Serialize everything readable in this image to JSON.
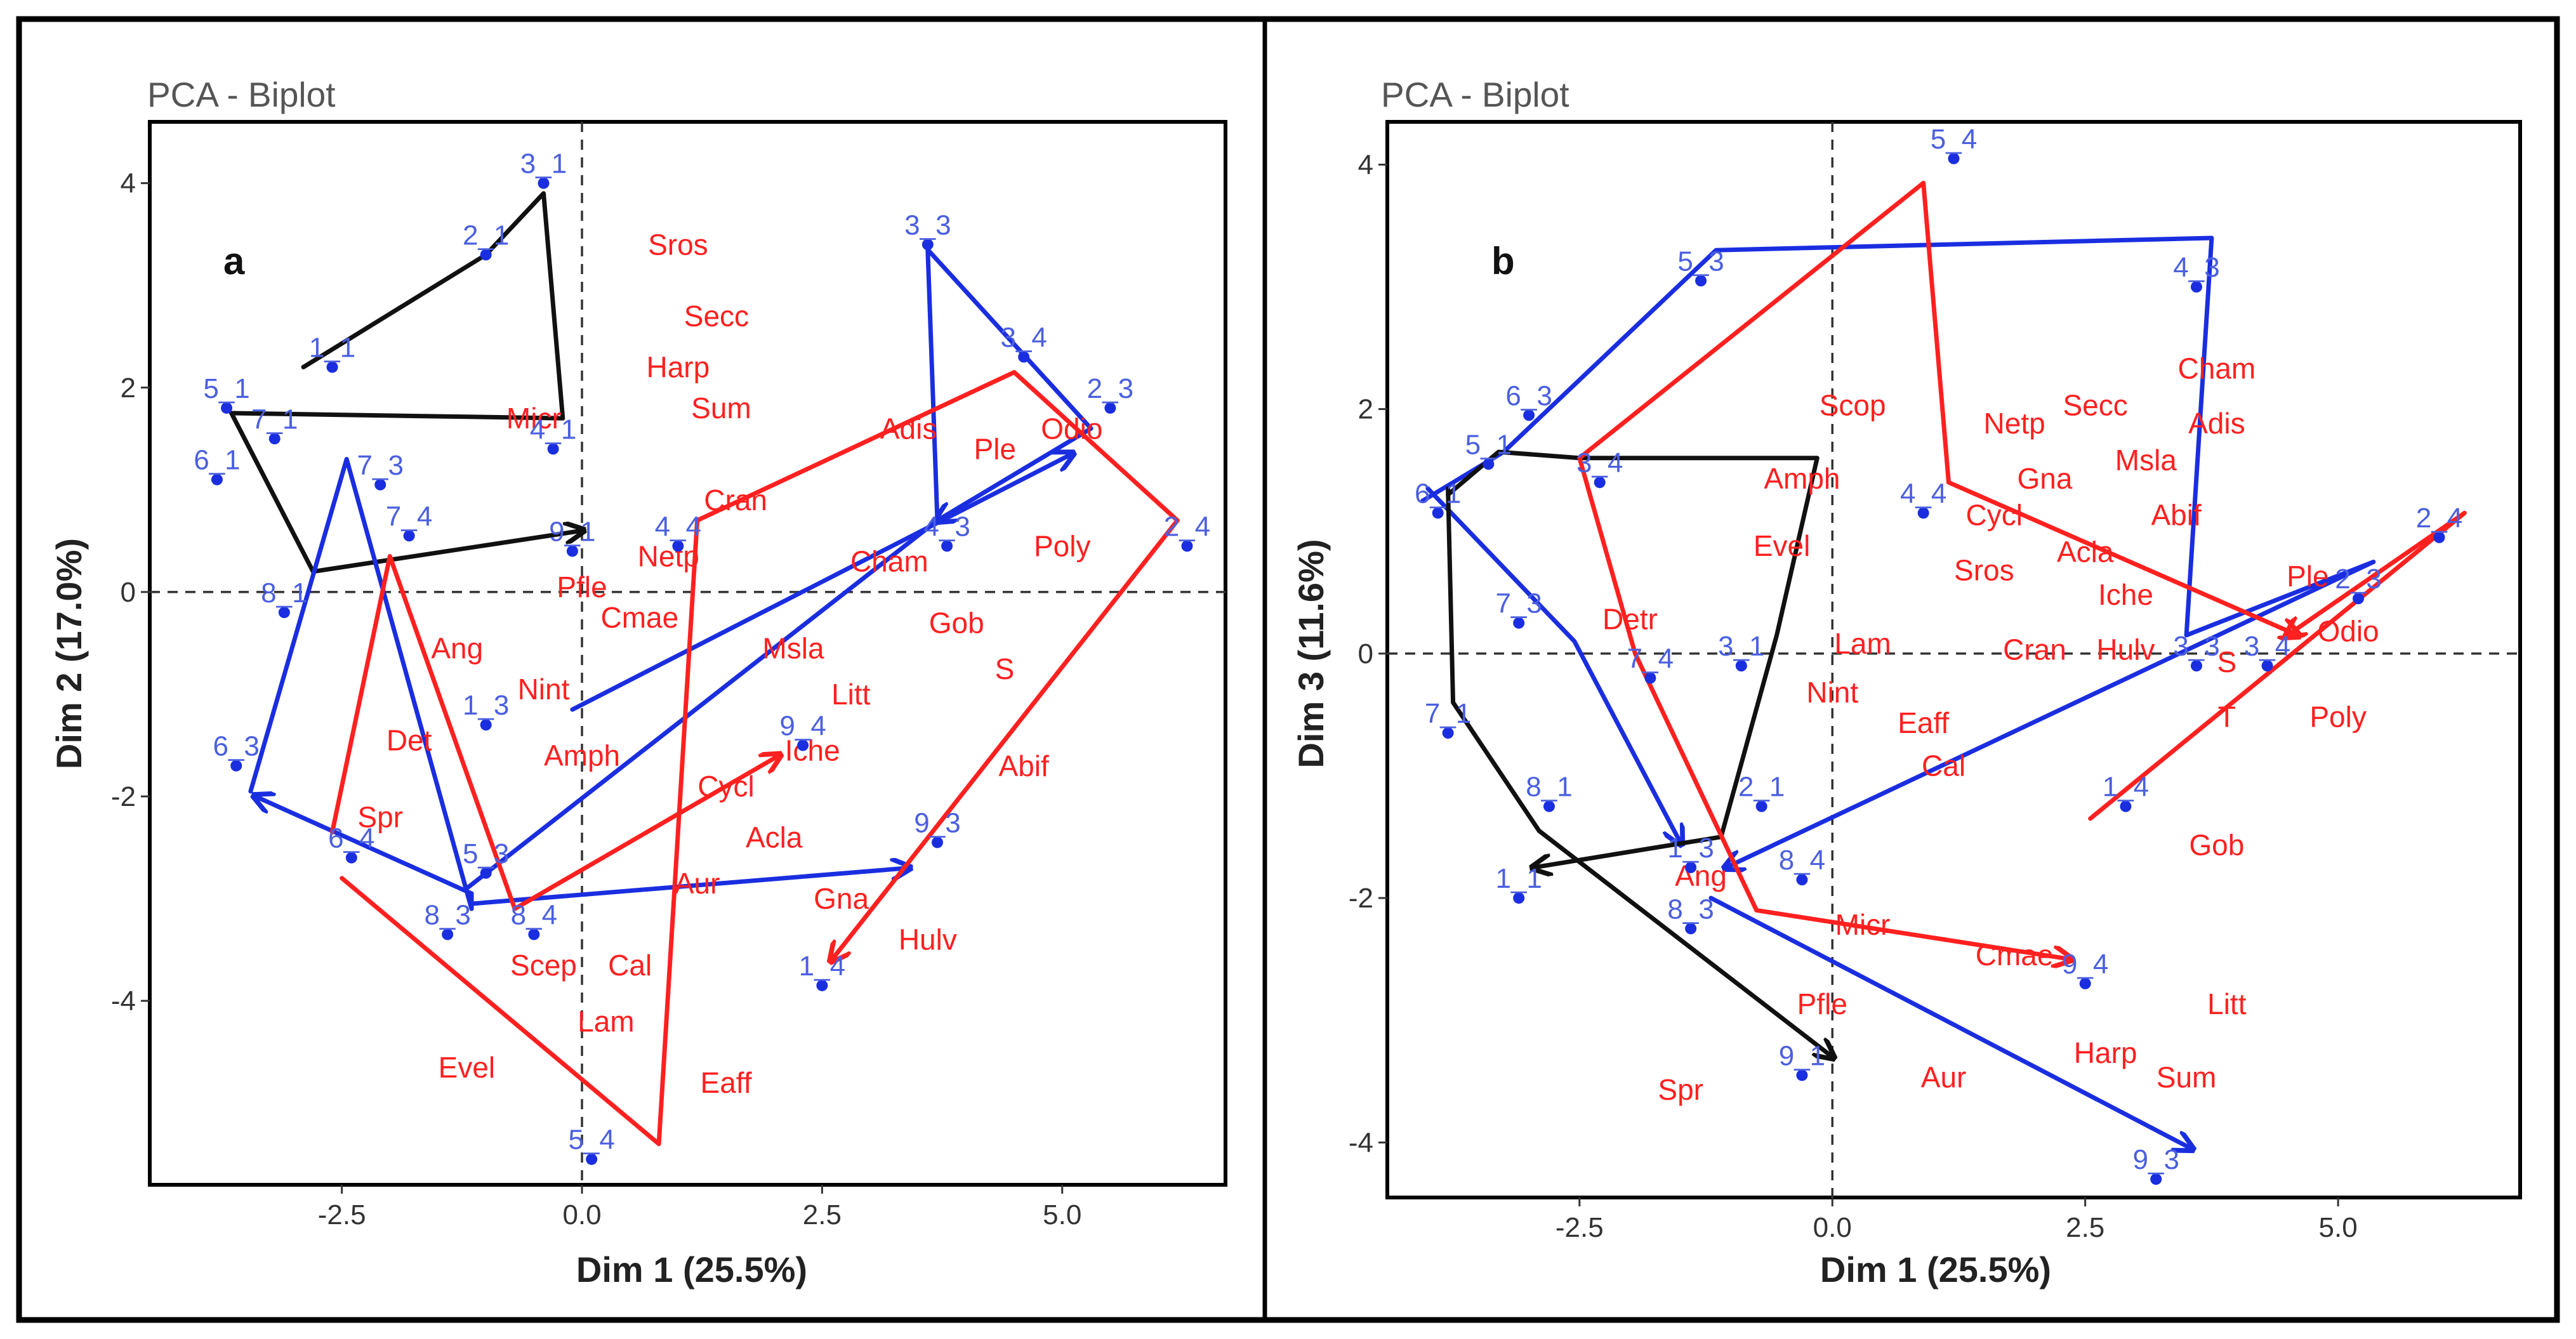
{
  "chart_data": [
    {
      "type": "scatter",
      "panel_label": "a",
      "title": "PCA - Biplot",
      "xlabel": "Dim 1 (25.5%)",
      "ylabel": "Dim 2 (17.0%)",
      "xlim": [
        -4.5,
        6.7
      ],
      "ylim": [
        -5.8,
        4.6
      ],
      "xticks": [
        -2.5,
        0.0,
        2.5,
        5.0
      ],
      "xtick_labels": [
        "-2.5",
        "0.0",
        "2.5",
        "5.0"
      ],
      "yticks": [
        -4,
        -2,
        0,
        2,
        4
      ],
      "ytick_labels": [
        "-4",
        "-2",
        "0",
        "2",
        "4"
      ],
      "species": [
        {
          "label": "Sros",
          "x": 1.0,
          "y": 3.3
        },
        {
          "label": "Secc",
          "x": 1.4,
          "y": 2.6
        },
        {
          "label": "Harp",
          "x": 1.0,
          "y": 2.1
        },
        {
          "label": "Sum",
          "x": 1.45,
          "y": 1.7
        },
        {
          "label": "Micr",
          "x": -0.5,
          "y": 1.6
        },
        {
          "label": "Adis",
          "x": 3.4,
          "y": 1.5
        },
        {
          "label": "Ple",
          "x": 4.3,
          "y": 1.3
        },
        {
          "label": "Odio",
          "x": 5.1,
          "y": 1.5
        },
        {
          "label": "Cran",
          "x": 1.6,
          "y": 0.8
        },
        {
          "label": "Poly",
          "x": 5.0,
          "y": 0.35
        },
        {
          "label": "Netp",
          "x": 0.9,
          "y": 0.25
        },
        {
          "label": "Cham",
          "x": 3.2,
          "y": 0.2
        },
        {
          "label": "Pfle",
          "x": 0.0,
          "y": -0.05
        },
        {
          "label": "Cmae",
          "x": 0.6,
          "y": -0.35
        },
        {
          "label": "Gob",
          "x": 3.9,
          "y": -0.4
        },
        {
          "label": "Ang",
          "x": -1.3,
          "y": -0.65
        },
        {
          "label": "Msla",
          "x": 2.2,
          "y": -0.65
        },
        {
          "label": "S",
          "x": 4.4,
          "y": -0.85
        },
        {
          "label": "Nint",
          "x": -0.4,
          "y": -1.05
        },
        {
          "label": "Litt",
          "x": 2.8,
          "y": -1.1
        },
        {
          "label": "Det",
          "x": -1.8,
          "y": -1.55
        },
        {
          "label": "Amph",
          "x": 0.0,
          "y": -1.7
        },
        {
          "label": "Iche",
          "x": 2.4,
          "y": -1.65
        },
        {
          "label": "Abif",
          "x": 4.6,
          "y": -1.8
        },
        {
          "label": "Cycl",
          "x": 1.5,
          "y": -2.0
        },
        {
          "label": "Spr",
          "x": -2.1,
          "y": -2.3
        },
        {
          "label": "Acla",
          "x": 2.0,
          "y": -2.5
        },
        {
          "label": "Aur",
          "x": 1.2,
          "y": -2.95
        },
        {
          "label": "Gna",
          "x": 2.7,
          "y": -3.1
        },
        {
          "label": "Hulv",
          "x": 3.6,
          "y": -3.5
        },
        {
          "label": "Scep",
          "x": -0.4,
          "y": -3.75
        },
        {
          "label": "Cal",
          "x": 0.5,
          "y": -3.75
        },
        {
          "label": "Lam",
          "x": 0.25,
          "y": -4.3
        },
        {
          "label": "Evel",
          "x": -1.2,
          "y": -4.75
        },
        {
          "label": "Eaff",
          "x": 1.5,
          "y": -4.9
        }
      ],
      "stations": [
        {
          "label": "3_1",
          "x": -0.4,
          "y": 4.0
        },
        {
          "label": "2_1",
          "x": -1.0,
          "y": 3.3
        },
        {
          "label": "1_1",
          "x": -2.6,
          "y": 2.2
        },
        {
          "label": "5_1",
          "x": -3.7,
          "y": 1.8
        },
        {
          "label": "7_1",
          "x": -3.2,
          "y": 1.5
        },
        {
          "label": "6_1",
          "x": -3.8,
          "y": 1.1
        },
        {
          "label": "4_1",
          "x": -0.3,
          "y": 1.4
        },
        {
          "label": "9_1",
          "x": -0.1,
          "y": 0.4
        },
        {
          "label": "8_1",
          "x": -3.1,
          "y": -0.2
        },
        {
          "label": "3_3",
          "x": 3.6,
          "y": 3.4
        },
        {
          "label": "3_4",
          "x": 4.6,
          "y": 2.3
        },
        {
          "label": "2_3",
          "x": 5.5,
          "y": 1.8
        },
        {
          "label": "7_3",
          "x": -2.1,
          "y": 1.05
        },
        {
          "label": "7_4",
          "x": -1.8,
          "y": 0.55
        },
        {
          "label": "4_4",
          "x": 1.0,
          "y": 0.45
        },
        {
          "label": "4_3",
          "x": 3.8,
          "y": 0.45
        },
        {
          "label": "2_4",
          "x": 6.3,
          "y": 0.45
        },
        {
          "label": "1_3",
          "x": -1.0,
          "y": -1.3
        },
        {
          "label": "9_4",
          "x": 2.3,
          "y": -1.5
        },
        {
          "label": "6_3",
          "x": -3.6,
          "y": -1.7
        },
        {
          "label": "6_4",
          "x": -2.4,
          "y": -2.6
        },
        {
          "label": "5_3",
          "x": -1.0,
          "y": -2.75
        },
        {
          "label": "9_3",
          "x": 3.7,
          "y": -2.45
        },
        {
          "label": "8_3",
          "x": -1.4,
          "y": -3.35
        },
        {
          "label": "8_4",
          "x": -0.5,
          "y": -3.35
        },
        {
          "label": "1_4",
          "x": 2.5,
          "y": -3.85
        },
        {
          "label": "5_4",
          "x": 0.1,
          "y": -5.55
        }
      ],
      "trajectories": [
        {
          "color": "#111111",
          "points": [
            [
              -2.9,
              2.2
            ],
            [
              -1.0,
              3.3
            ],
            [
              -0.4,
              3.9
            ],
            [
              -0.2,
              1.7
            ],
            [
              -3.65,
              1.75
            ],
            [
              -2.8,
              0.2
            ],
            [
              0.0,
              0.6
            ]
          ]
        },
        {
          "color": "#1a2ee0",
          "points": [
            [
              -3.45,
              -1.95
            ],
            [
              -2.45,
              1.3
            ],
            [
              -1.15,
              -3.1
            ],
            [
              -1.15,
              -2.95
            ],
            [
              -3.4,
              -2.0
            ]
          ]
        },
        {
          "color": "#1a2ee0",
          "points": [
            [
              -1.2,
              -2.9
            ],
            [
              3.7,
              0.7
            ],
            [
              3.6,
              3.35
            ],
            [
              5.3,
              1.6
            ],
            [
              3.7,
              0.7
            ]
          ]
        },
        {
          "color": "#1a2ee0",
          "points": [
            [
              -0.1,
              -1.15
            ],
            [
              5.1,
              1.35
            ]
          ]
        },
        {
          "color": "#1a2ee0",
          "points": [
            [
              -1.15,
              -3.05
            ],
            [
              3.4,
              -2.7
            ]
          ]
        },
        {
          "color": "#ff2020",
          "points": [
            [
              -2.6,
              -2.35
            ],
            [
              -2.0,
              0.35
            ],
            [
              -0.7,
              -3.1
            ],
            [
              -0.7,
              -3.1
            ],
            [
              2.05,
              -1.6
            ]
          ]
        },
        {
          "color": "#ff2020",
          "points": [
            [
              -2.5,
              -2.8
            ],
            [
              0.8,
              -5.4
            ],
            [
              1.2,
              0.7
            ],
            [
              4.5,
              2.15
            ],
            [
              6.2,
              0.7
            ],
            [
              2.6,
              -3.6
            ]
          ]
        }
      ]
    },
    {
      "type": "scatter",
      "panel_label": "b",
      "title": "PCA - Biplot",
      "xlabel": "Dim 1 (25.5%)",
      "ylabel": "Dim 3 (11.6%)",
      "xlim": [
        -4.4,
        6.8
      ],
      "ylim": [
        -4.45,
        4.35
      ],
      "xticks": [
        -2.5,
        0.0,
        2.5,
        5.0
      ],
      "xtick_labels": [
        "-2.5",
        "0.0",
        "2.5",
        "5.0"
      ],
      "yticks": [
        -4,
        -2,
        0,
        2,
        4
      ],
      "ytick_labels": [
        "-4",
        "-2",
        "0",
        "2",
        "4"
      ],
      "species": [
        {
          "label": "Cham",
          "x": 3.8,
          "y": 2.25
        },
        {
          "label": "Secc",
          "x": 2.6,
          "y": 1.95
        },
        {
          "label": "Scop",
          "x": 0.2,
          "y": 1.95
        },
        {
          "label": "Adis",
          "x": 3.8,
          "y": 1.8
        },
        {
          "label": "Netp",
          "x": 1.8,
          "y": 1.8
        },
        {
          "label": "Msla",
          "x": 3.1,
          "y": 1.5
        },
        {
          "label": "Gna",
          "x": 2.1,
          "y": 1.35
        },
        {
          "label": "Amph",
          "x": -0.3,
          "y": 1.35
        },
        {
          "label": "Abif",
          "x": 3.4,
          "y": 1.05
        },
        {
          "label": "Cycl",
          "x": 1.6,
          "y": 1.05
        },
        {
          "label": "Evel",
          "x": -0.5,
          "y": 0.8
        },
        {
          "label": "Acla",
          "x": 2.5,
          "y": 0.75
        },
        {
          "label": "Sros",
          "x": 1.5,
          "y": 0.6
        },
        {
          "label": "Ple",
          "x": 4.7,
          "y": 0.55
        },
        {
          "label": "Iche",
          "x": 2.9,
          "y": 0.4
        },
        {
          "label": "Detr",
          "x": -2.0,
          "y": 0.2
        },
        {
          "label": "Odio",
          "x": 5.1,
          "y": 0.1
        },
        {
          "label": "Lam",
          "x": 0.3,
          "y": 0.0
        },
        {
          "label": "Cran",
          "x": 2.0,
          "y": -0.05
        },
        {
          "label": "Hulv",
          "x": 2.9,
          "y": -0.05
        },
        {
          "label": "S",
          "x": 3.9,
          "y": -0.15
        },
        {
          "label": "Nint",
          "x": 0.0,
          "y": -0.4
        },
        {
          "label": "T",
          "x": 3.9,
          "y": -0.6
        },
        {
          "label": "Poly",
          "x": 5.0,
          "y": -0.6
        },
        {
          "label": "Eaff",
          "x": 0.9,
          "y": -0.65
        },
        {
          "label": "Cal",
          "x": 1.1,
          "y": -1.0
        },
        {
          "label": "Gob",
          "x": 3.8,
          "y": -1.65
        },
        {
          "label": "Ang",
          "x": -1.3,
          "y": -1.9
        },
        {
          "label": "Micr",
          "x": 0.3,
          "y": -2.3
        },
        {
          "label": "Cmae",
          "x": 1.8,
          "y": -2.55
        },
        {
          "label": "Pfle",
          "x": -0.1,
          "y": -2.95
        },
        {
          "label": "Litt",
          "x": 3.9,
          "y": -2.95
        },
        {
          "label": "Harp",
          "x": 2.7,
          "y": -3.35
        },
        {
          "label": "Aur",
          "x": 1.1,
          "y": -3.55
        },
        {
          "label": "Sum",
          "x": 3.5,
          "y": -3.55
        },
        {
          "label": "Spr",
          "x": -1.5,
          "y": -3.65
        }
      ],
      "stations": [
        {
          "label": "5_4",
          "x": 1.2,
          "y": 4.05
        },
        {
          "label": "5_3",
          "x": -1.3,
          "y": 3.05
        },
        {
          "label": "4_3",
          "x": 3.6,
          "y": 3.0
        },
        {
          "label": "6_3",
          "x": -3.0,
          "y": 1.95
        },
        {
          "label": "5_1",
          "x": -3.4,
          "y": 1.55
        },
        {
          "label": "3_4",
          "x": -2.3,
          "y": 1.4
        },
        {
          "label": "6_1",
          "x": -3.9,
          "y": 1.15
        },
        {
          "label": "4_4",
          "x": 0.9,
          "y": 1.15
        },
        {
          "label": "2_4",
          "x": 6.0,
          "y": 0.95
        },
        {
          "label": "7_3",
          "x": -3.1,
          "y": 0.25
        },
        {
          "label": "2_3",
          "x": 5.2,
          "y": 0.45
        },
        {
          "label": "7_4",
          "x": -1.8,
          "y": -0.2
        },
        {
          "label": "3_1",
          "x": -0.9,
          "y": -0.1
        },
        {
          "label": "3_3",
          "x": 3.6,
          "y": -0.1
        },
        {
          "label": "3_4",
          "x": 4.3,
          "y": -0.1
        },
        {
          "label": "7_1",
          "x": -3.8,
          "y": -0.65
        },
        {
          "label": "8_1",
          "x": -2.8,
          "y": -1.25
        },
        {
          "label": "2_1",
          "x": -0.7,
          "y": -1.25
        },
        {
          "label": "1_4",
          "x": 2.9,
          "y": -1.25
        },
        {
          "label": "1_3",
          "x": -1.4,
          "y": -1.75
        },
        {
          "label": "8_4",
          "x": -0.3,
          "y": -1.85
        },
        {
          "label": "1_1",
          "x": -3.1,
          "y": -2.0
        },
        {
          "label": "8_3",
          "x": -1.4,
          "y": -2.25
        },
        {
          "label": "9_4",
          "x": 2.5,
          "y": -2.7
        },
        {
          "label": "9_1",
          "x": -0.3,
          "y": -3.45
        },
        {
          "label": "9_3",
          "x": 3.2,
          "y": -4.3
        }
      ],
      "trajectories": [
        {
          "color": "#1a2ee0",
          "points": [
            [
              -4.05,
              1.25
            ],
            [
              -3.25,
              1.65
            ],
            [
              -1.15,
              3.3
            ],
            [
              3.75,
              3.4
            ],
            [
              3.5,
              0.15
            ],
            [
              5.35,
              0.75
            ],
            [
              -1.05,
              -1.75
            ]
          ]
        },
        {
          "color": "#1a2ee0",
          "points": [
            [
              -4.0,
              1.35
            ],
            [
              -2.55,
              0.1
            ],
            [
              -1.5,
              -1.55
            ]
          ]
        },
        {
          "color": "#1a2ee0",
          "points": [
            [
              -1.2,
              -2.0
            ],
            [
              3.55,
              -4.05
            ]
          ]
        },
        {
          "color": "#111111",
          "points": [
            [
              -3.8,
              1.3
            ],
            [
              -3.3,
              1.65
            ],
            [
              -2.5,
              1.6
            ],
            [
              -0.15,
              1.6
            ],
            [
              -0.55,
              0.15
            ],
            [
              -1.1,
              -1.5
            ],
            [
              -2.95,
              -1.75
            ]
          ]
        },
        {
          "color": "#111111",
          "points": [
            [
              -3.8,
              1.35
            ],
            [
              -3.75,
              -0.4
            ],
            [
              -2.9,
              -1.45
            ],
            [
              0.0,
              -3.3
            ]
          ]
        },
        {
          "color": "#ff2020",
          "points": [
            [
              -2.5,
              1.6
            ],
            [
              0.9,
              3.85
            ],
            [
              1.15,
              1.4
            ],
            [
              4.6,
              0.15
            ]
          ]
        },
        {
          "color": "#ff2020",
          "points": [
            [
              -2.5,
              1.6
            ],
            [
              -1.95,
              0.0
            ],
            [
              -0.75,
              -2.1
            ],
            [
              2.35,
              -2.5
            ]
          ]
        },
        {
          "color": "#ff2020",
          "points": [
            [
              2.55,
              -1.35
            ],
            [
              6.25,
              1.15
            ],
            [
              4.5,
              0.15
            ]
          ]
        }
      ]
    }
  ]
}
